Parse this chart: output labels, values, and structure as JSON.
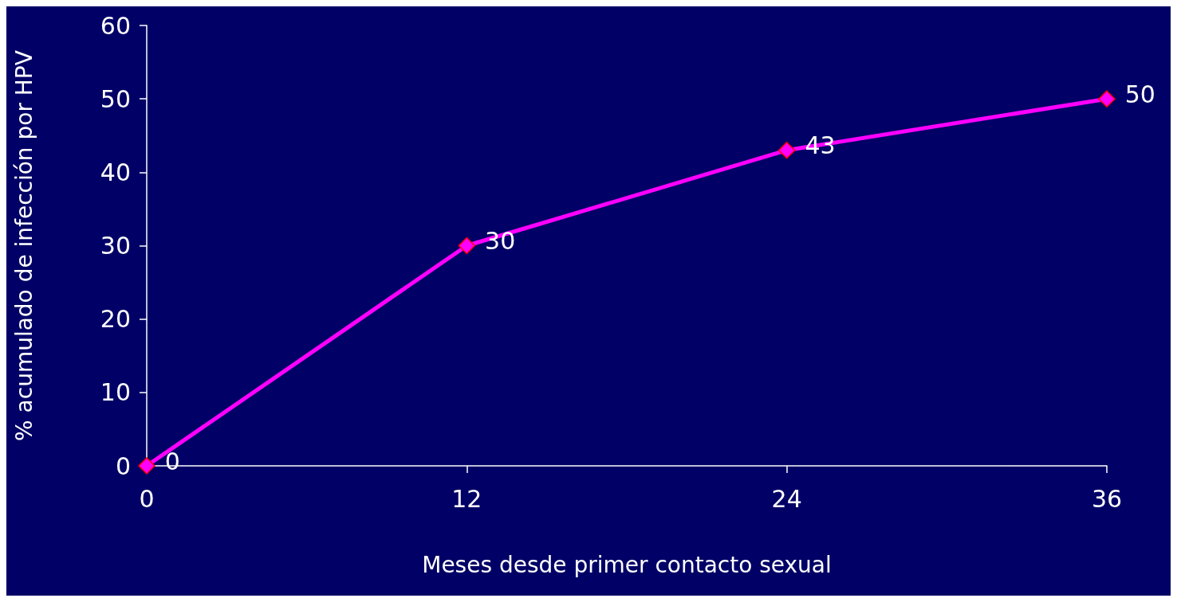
{
  "chart_data": {
    "type": "line",
    "xlabel": "Meses desde primer contacto sexual",
    "ylabel": "% acumulado de infección por HPV",
    "x": [
      0,
      12,
      24,
      36
    ],
    "series": [
      {
        "color": "#ff00ff",
        "values": [
          0,
          30,
          43,
          50
        ]
      }
    ],
    "xlim": [
      0,
      36
    ],
    "xticks": [
      0,
      12,
      24,
      36
    ],
    "ylim": [
      0,
      60
    ],
    "yticks": [
      0,
      10,
      20,
      30,
      40,
      50,
      60
    ],
    "data_labels": true,
    "marker": "diamond",
    "line_style": "solid",
    "grid": false
  }
}
